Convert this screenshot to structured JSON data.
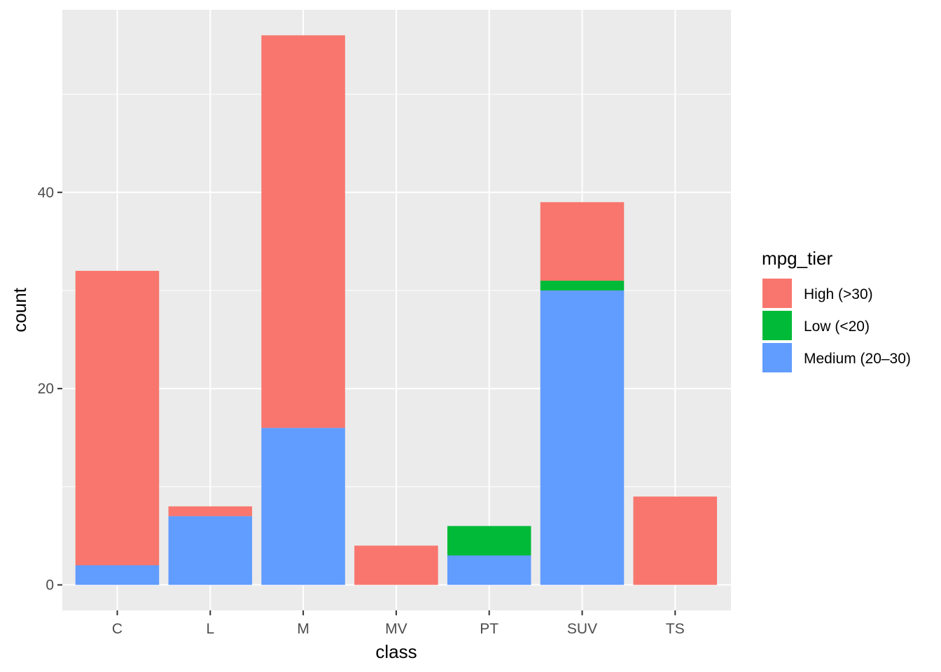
{
  "chart_data": {
    "type": "bar",
    "stacked": true,
    "categories": [
      "C",
      "L",
      "M",
      "MV",
      "PT",
      "SUV",
      "TS"
    ],
    "series": [
      {
        "name": "Medium (20–30)",
        "color": "#619cff",
        "values": [
          2,
          7,
          16,
          0,
          3,
          30,
          0
        ]
      },
      {
        "name": "Low (<20)",
        "color": "#00ba38",
        "values": [
          0,
          0,
          0,
          0,
          3,
          1,
          0
        ]
      },
      {
        "name": "High (>30)",
        "color": "#f8766d",
        "values": [
          30,
          1,
          40,
          4,
          0,
          8,
          9
        ]
      }
    ],
    "stack_order_bottom_to_top": [
      "Medium (20–30)",
      "Low (<20)",
      "High (>30)"
    ],
    "xlabel": "class",
    "ylabel": "count",
    "ylim": [
      -2.6,
      58.6
    ],
    "yticks": [
      0,
      20,
      40
    ],
    "grid": true,
    "panel_background": "#ebebeb",
    "legend": {
      "title": "mpg_tier",
      "position": "right",
      "entries": [
        {
          "label": "High (>30)",
          "color": "#f8766d"
        },
        {
          "label": "Low (<20)",
          "color": "#00ba38"
        },
        {
          "label": "Medium (20–30)",
          "color": "#619cff"
        }
      ]
    }
  }
}
